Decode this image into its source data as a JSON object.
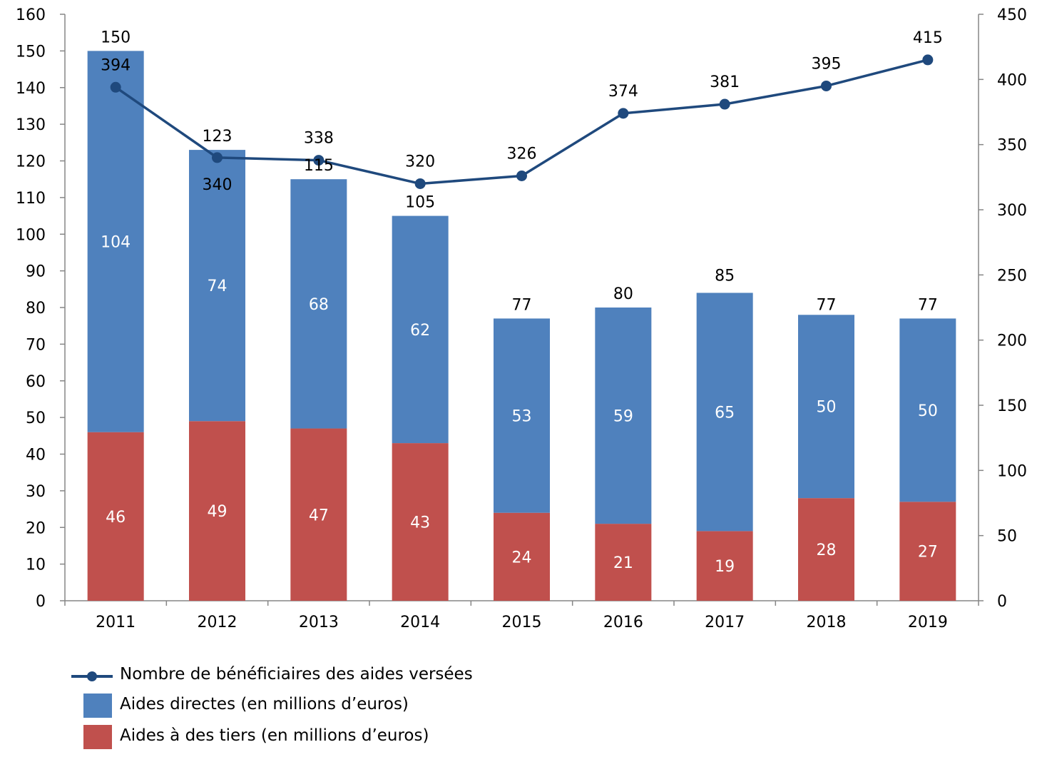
{
  "chart_data": {
    "type": "bar",
    "stacked": true,
    "categories": [
      "2011",
      "2012",
      "2013",
      "2014",
      "2015",
      "2016",
      "2017",
      "2018",
      "2019"
    ],
    "series": [
      {
        "name": "Aides à des tiers (en millions d’euros)",
        "kind": "bar",
        "axis": "left",
        "color": "#C0504D",
        "values": [
          46,
          49,
          47,
          43,
          24,
          21,
          19,
          28,
          27
        ]
      },
      {
        "name": "Aides directes (en millions d’euros)",
        "kind": "bar",
        "axis": "left",
        "color": "#4F81BD",
        "values": [
          104,
          74,
          68,
          62,
          53,
          59,
          65,
          50,
          50
        ]
      },
      {
        "name": "Nombre de bénéficiaires des aides versées",
        "kind": "line",
        "axis": "right",
        "color": "#1F497D",
        "values": [
          394,
          340,
          338,
          320,
          326,
          374,
          381,
          395,
          415
        ]
      }
    ],
    "totals": [
      150,
      123,
      115,
      105,
      77,
      80,
      85,
      77,
      77
    ],
    "y_left": {
      "min": 0,
      "max": 160,
      "step": 10,
      "ticks": [
        "0",
        "10",
        "20",
        "30",
        "40",
        "50",
        "60",
        "70",
        "80",
        "90",
        "100",
        "110",
        "120",
        "130",
        "140",
        "150",
        "160"
      ]
    },
    "y_right": {
      "min": 0,
      "max": 450,
      "step": 50,
      "ticks": [
        "0",
        "50",
        "100",
        "150",
        "200",
        "250",
        "300",
        "350",
        "400",
        "450"
      ]
    },
    "legend": {
      "position": "bottom-left"
    },
    "grid": false,
    "title": "",
    "xlabel": "",
    "ylabel": ""
  },
  "legend": {
    "line_label": "Nombre de bénéficiaires des aides versées",
    "direct_label": "Aides directes (en millions d’euros)",
    "tiers_label": "Aides à des tiers (en millions d’euros)"
  }
}
